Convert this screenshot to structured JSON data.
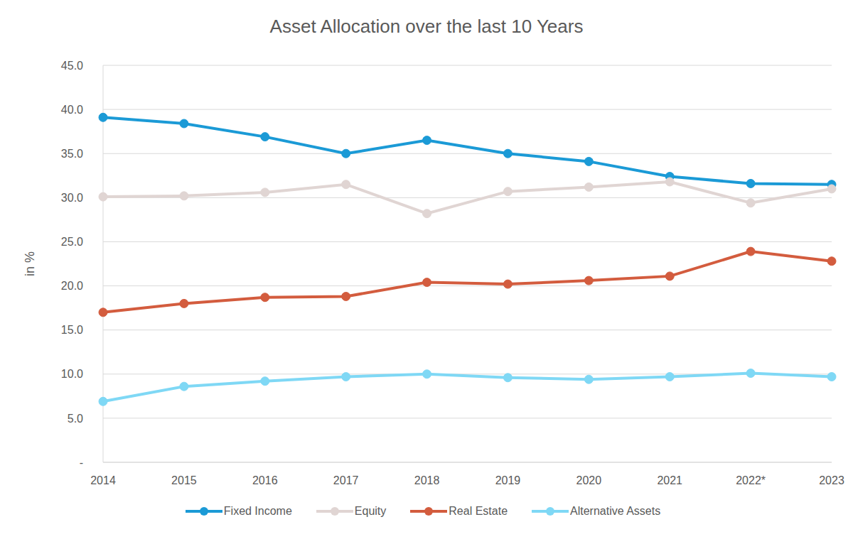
{
  "chart_data": {
    "type": "line",
    "title": "Asset Allocation over the last 10 Years",
    "y_label": "in %",
    "categories": [
      "2014",
      "2015",
      "2016",
      "2017",
      "2018",
      "2019",
      "2020",
      "2021",
      "2022*",
      "2023"
    ],
    "series": [
      {
        "name": "Fixed Income",
        "color": "#1b9ad6",
        "marker": "circle",
        "line_style": "solid",
        "values": [
          39.1,
          38.4,
          36.9,
          35.0,
          36.5,
          35.0,
          34.1,
          32.4,
          31.6,
          31.5
        ]
      },
      {
        "name": "Equity",
        "color": "#e0d5d3",
        "marker": "circle",
        "line_style": "solid",
        "values": [
          30.1,
          30.2,
          30.6,
          31.5,
          28.2,
          30.7,
          31.2,
          31.8,
          29.4,
          31.0
        ]
      },
      {
        "name": "Real Estate",
        "color": "#d35c3e",
        "marker": "circle",
        "line_style": "solid",
        "values": [
          17.0,
          18.0,
          18.7,
          18.8,
          20.4,
          20.2,
          20.6,
          21.1,
          23.9,
          22.8
        ]
      },
      {
        "name": "Alternative Assets",
        "color": "#7fd8f5",
        "marker": "circle",
        "line_style": "solid",
        "values": [
          6.9,
          8.6,
          9.2,
          9.7,
          10.0,
          9.6,
          9.4,
          9.7,
          10.1,
          9.7
        ]
      }
    ],
    "ylim": [
      0,
      45
    ],
    "yticks": [
      {
        "value": 0,
        "label": "-"
      },
      {
        "value": 5,
        "label": "5.0"
      },
      {
        "value": 10,
        "label": "10.0"
      },
      {
        "value": 15,
        "label": "15.0"
      },
      {
        "value": 20,
        "label": "20.0"
      },
      {
        "value": 25,
        "label": "25.0"
      },
      {
        "value": 30,
        "label": "30.0"
      },
      {
        "value": 35,
        "label": "35.0"
      },
      {
        "value": 40,
        "label": "40.0"
      },
      {
        "value": 45,
        "label": "45.0"
      }
    ],
    "grid": true,
    "legend": "bottom"
  }
}
